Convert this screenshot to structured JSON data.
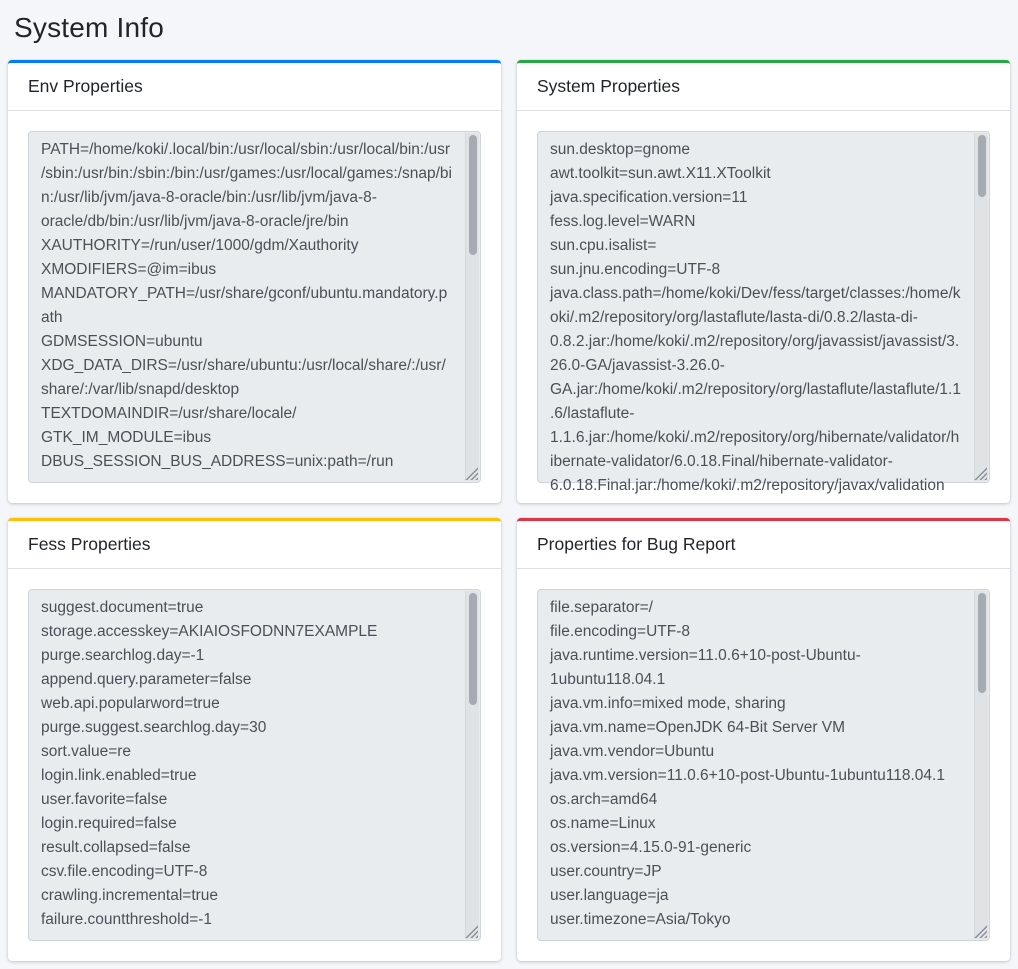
{
  "page": {
    "title": "System Info"
  },
  "colors": {
    "background": "#f4f6f9",
    "card_accent_env": "#007bff",
    "card_accent_system": "#28a745",
    "card_accent_fess": "#ffc107",
    "card_accent_bug": "#dc3545",
    "textarea_bg": "#e9ecef",
    "textarea_text": "#495057"
  },
  "cards": [
    {
      "title": "Env Properties",
      "content": "PATH=/home/koki/.local/bin:/usr/local/sbin:/usr/local/bin:/usr/sbin:/usr/bin:/sbin:/bin:/usr/games:/usr/local/games:/snap/bin:/usr/lib/jvm/java-8-oracle/bin:/usr/lib/jvm/java-8-oracle/db/bin:/usr/lib/jvm/java-8-oracle/jre/bin\nXAUTHORITY=/run/user/1000/gdm/Xauthority\nXMODIFIERS=@im=ibus\nMANDATORY_PATH=/usr/share/gconf/ubuntu.mandatory.path\nGDMSESSION=ubuntu\nXDG_DATA_DIRS=/usr/share/ubuntu:/usr/local/share/:/usr/share/:/var/lib/snapd/desktop\nTEXTDOMAINDIR=/usr/share/locale/\nGTK_IM_MODULE=ibus\nDBUS_SESSION_BUS_ADDRESS=unix:path=/run"
    },
    {
      "title": "System Properties",
      "content": "sun.desktop=gnome\nawt.toolkit=sun.awt.X11.XToolkit\njava.specification.version=11\nfess.log.level=WARN\nsun.cpu.isalist=\nsun.jnu.encoding=UTF-8\njava.class.path=/home/koki/Dev/fess/target/classes:/home/koki/.m2/repository/org/lastaflute/lasta-di/0.8.2/lasta-di-0.8.2.jar:/home/koki/.m2/repository/org/javassist/javassist/3.26.0-GA/javassist-3.26.0-GA.jar:/home/koki/.m2/repository/org/lastaflute/lastaflute/1.1.6/lastaflute-1.1.6.jar:/home/koki/.m2/repository/org/hibernate/validator/hibernate-validator/6.0.18.Final/hibernate-validator-6.0.18.Final.jar:/home/koki/.m2/repository/javax/validation"
    },
    {
      "title": "Fess Properties",
      "content": "suggest.document=true\nstorage.accesskey=AKIAIOSFODNN7EXAMPLE\npurge.searchlog.day=-1\nappend.query.parameter=false\nweb.api.popularword=true\npurge.suggest.searchlog.day=30\nsort.value=re\nlogin.link.enabled=true\nuser.favorite=false\nlogin.required=false\nresult.collapsed=false\ncsv.file.encoding=UTF-8\ncrawling.incremental=true\nfailure.countthreshold=-1"
    },
    {
      "title": "Properties for Bug Report",
      "content": "file.separator=/\nfile.encoding=UTF-8\njava.runtime.version=11.0.6+10-post-Ubuntu-1ubuntu118.04.1\njava.vm.info=mixed mode, sharing\njava.vm.name=OpenJDK 64-Bit Server VM\njava.vm.vendor=Ubuntu\njava.vm.version=11.0.6+10-post-Ubuntu-1ubuntu118.04.1\nos.arch=amd64\nos.name=Linux\nos.version=4.15.0-91-generic\nuser.country=JP\nuser.language=ja\nuser.timezone=Asia/Tokyo"
    }
  ]
}
